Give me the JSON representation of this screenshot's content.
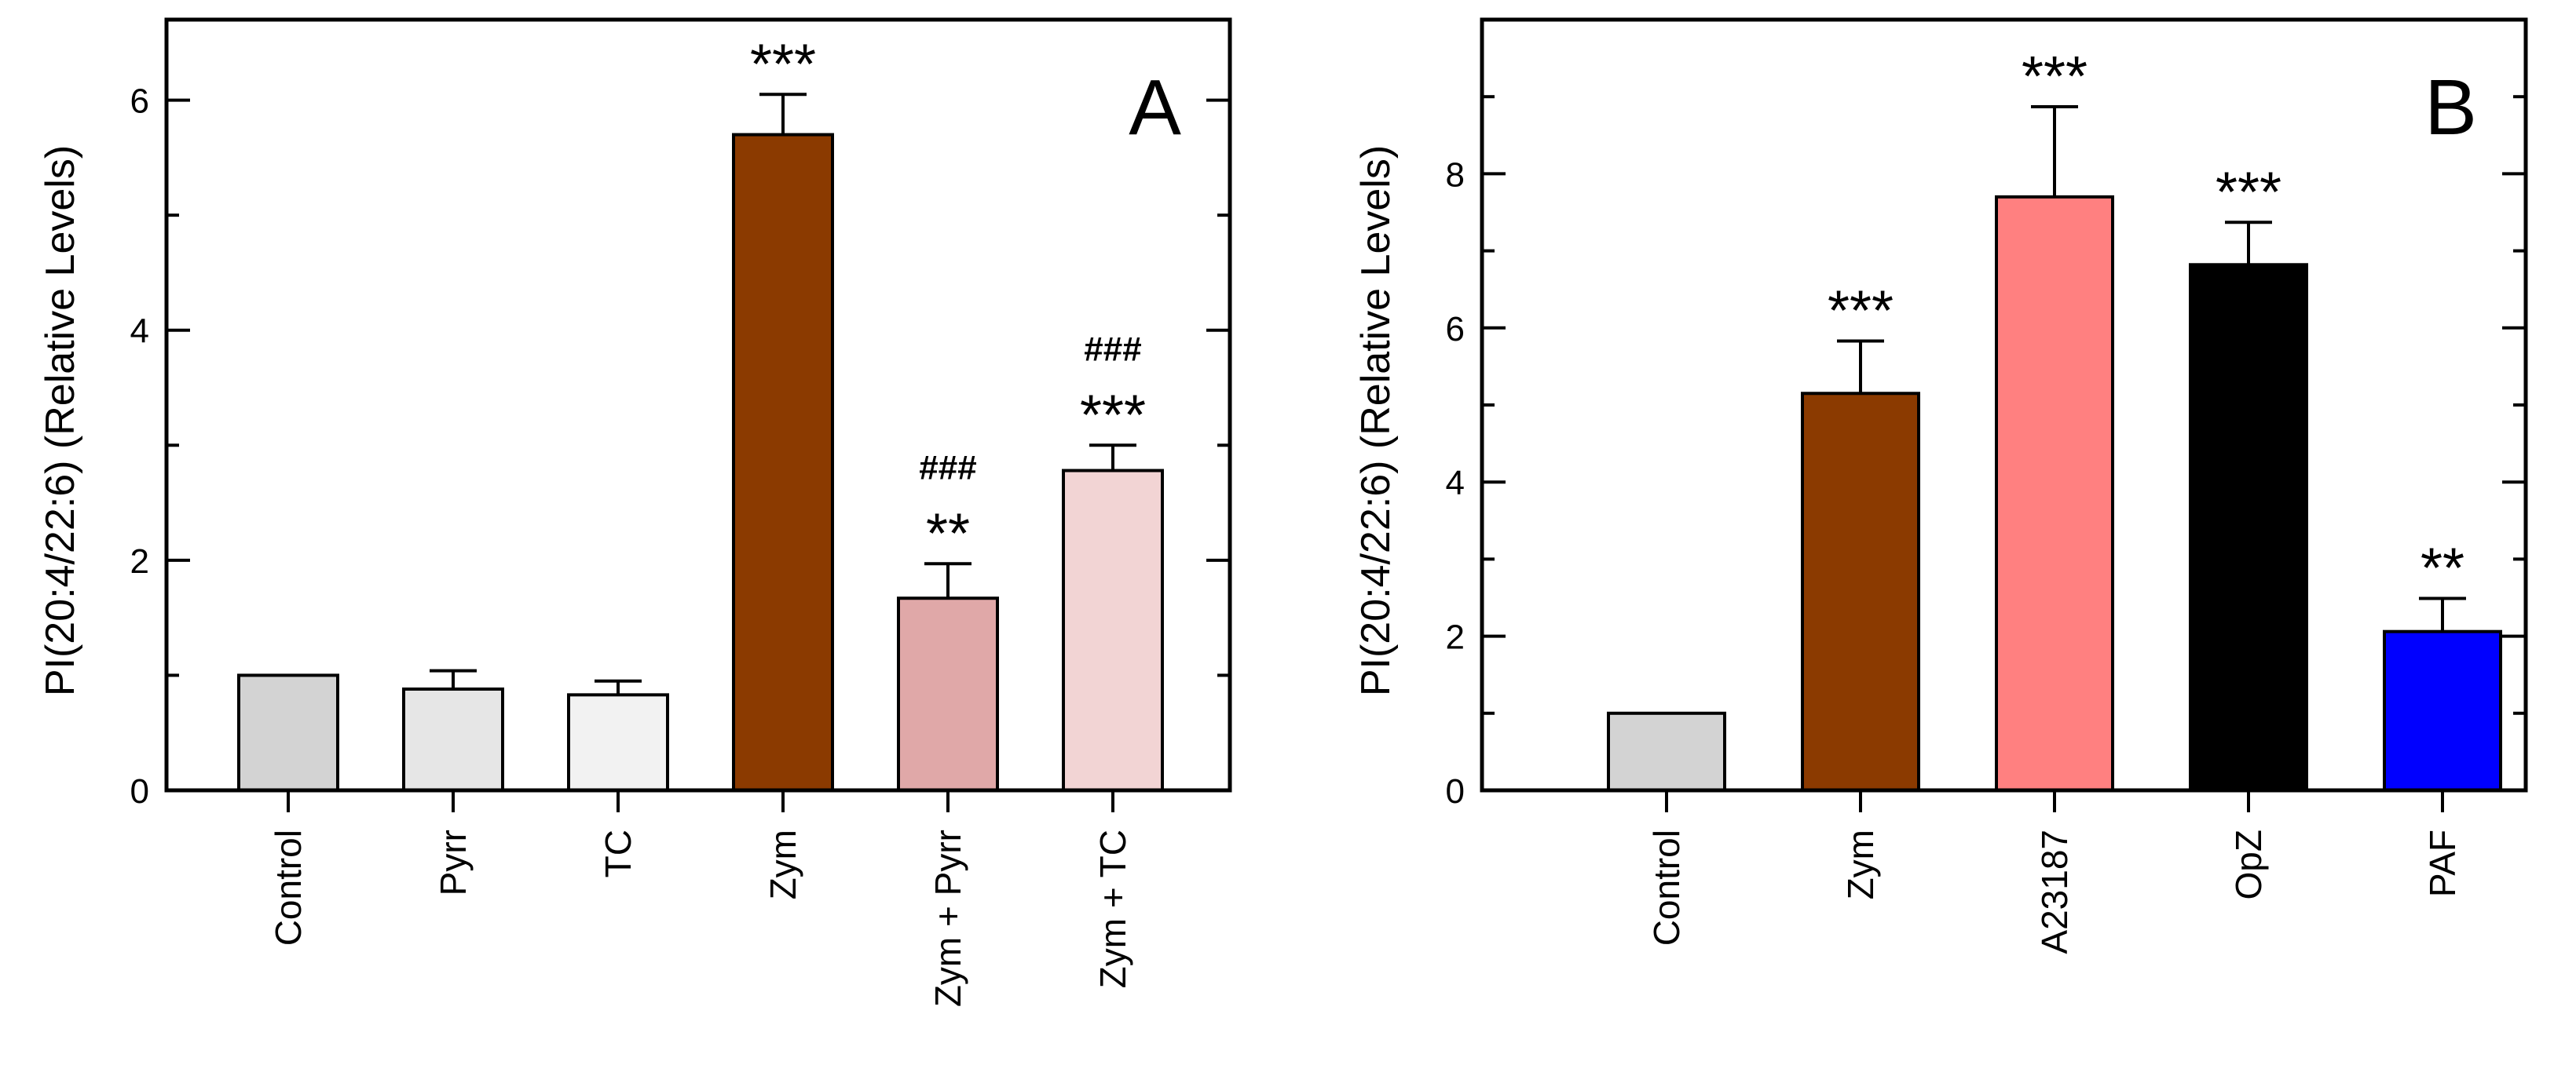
{
  "chart_data": [
    {
      "type": "bar",
      "panel_label": "A",
      "ylabel": "PI(20:4/22:6) (Relative Levels)",
      "ylim": [
        0,
        6.7
      ],
      "yticks": [
        0,
        2,
        4,
        6
      ],
      "grid": false,
      "categories": [
        "Control",
        "Pyrr",
        "TC",
        "Zym",
        "Zym + Pyrr",
        "Zym + TC"
      ],
      "values": [
        1.0,
        0.88,
        0.83,
        5.7,
        1.67,
        2.78
      ],
      "errors": [
        0,
        0.16,
        0.12,
        0.35,
        0.3,
        0.22
      ],
      "colors": [
        "#d3d3d3",
        "#e6e6e6",
        "#f2f2f2",
        "#8b3a00",
        "#e0a8a8",
        "#f2d4d4"
      ],
      "significance": [
        "",
        "",
        "",
        "***",
        "**",
        "***"
      ],
      "hash_marks": [
        "",
        "",
        "",
        "",
        "###",
        "###"
      ]
    },
    {
      "type": "bar",
      "panel_label": "B",
      "ylabel": "PI(20:4/22:6) (Relative Levels)",
      "ylim": [
        0,
        10
      ],
      "yticks": [
        0,
        2,
        4,
        6,
        8
      ],
      "grid": false,
      "categories": [
        "Control",
        "Zym",
        "A23187",
        "OpZ",
        "PAF"
      ],
      "values": [
        1.0,
        5.15,
        7.7,
        6.82,
        2.06
      ],
      "errors": [
        0,
        0.68,
        1.17,
        0.55,
        0.43
      ],
      "colors": [
        "#d3d3d3",
        "#8b3a00",
        "#ff8080",
        "#000000",
        "#0000ff"
      ],
      "significance": [
        "",
        "***",
        "***",
        "***",
        "**"
      ],
      "hash_marks": [
        "",
        "",
        "",
        "",
        ""
      ]
    }
  ]
}
